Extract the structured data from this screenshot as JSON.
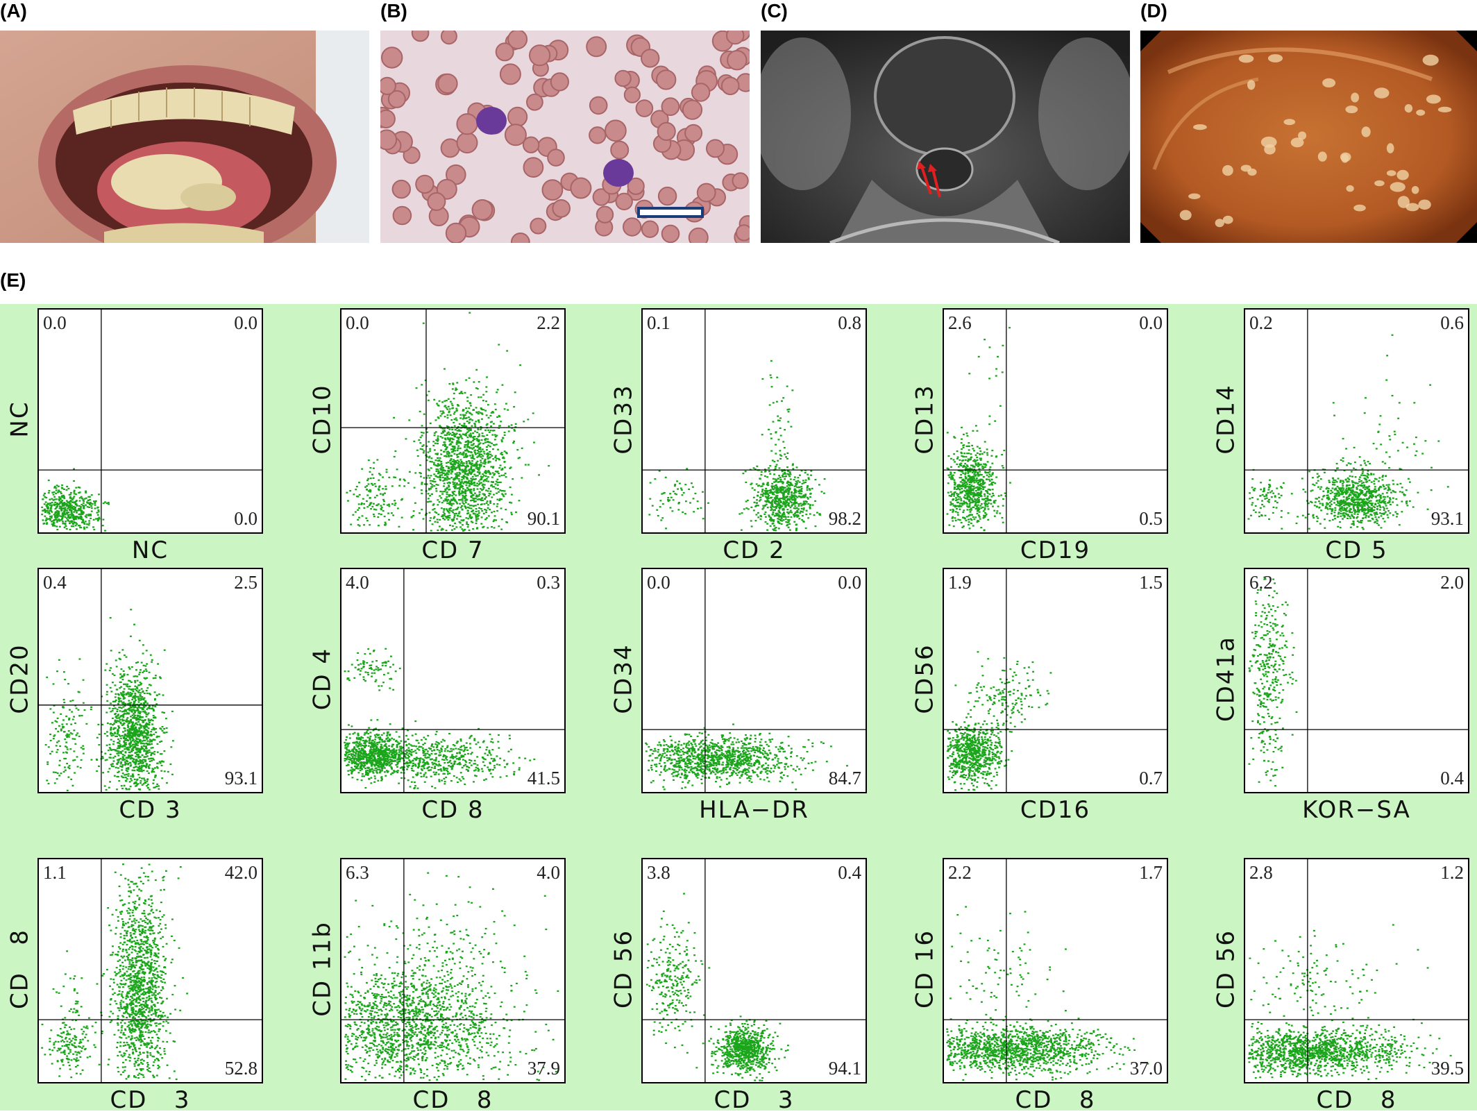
{
  "panel_labels": {
    "a": "(A)",
    "b": "(B)",
    "c": "(C)",
    "d": "(D)",
    "e": "(E)"
  },
  "images": {
    "a": "photo of open mouth with whitish plaques on tongue",
    "b": "peripheral blood smear with two purple-stained lymphocytes and scale bar",
    "c": "axial MRI of lumbar spine with red arrows",
    "d": "endoscopic view of colonic mucosa with multiple whitish nodules"
  },
  "colors": {
    "dot": "#1aa51a",
    "panel_bg": "#ccf5c4",
    "arrow": "#e02020"
  },
  "chart_data": [
    {
      "type": "scatter",
      "xlabel": "NC",
      "ylabel": "NC",
      "quadrants": {
        "ul": "0.0",
        "ur": "0.0",
        "lr": "0.0"
      }
    },
    {
      "type": "scatter",
      "xlabel": "CD 7",
      "ylabel": "CD10",
      "quadrants": {
        "ul": "0.0",
        "ur": "2.2",
        "lr": "90.1"
      }
    },
    {
      "type": "scatter",
      "xlabel": "CD 2",
      "ylabel": "CD33",
      "quadrants": {
        "ul": "0.1",
        "ur": "0.8",
        "lr": "98.2"
      }
    },
    {
      "type": "scatter",
      "xlabel": "CD19",
      "ylabel": "CD13",
      "quadrants": {
        "ul": "2.6",
        "ur": "0.0",
        "lr": "0.5"
      }
    },
    {
      "type": "scatter",
      "xlabel": "CD 5",
      "ylabel": "CD14",
      "quadrants": {
        "ul": "0.2",
        "ur": "0.6",
        "lr": "93.1"
      }
    },
    {
      "type": "scatter",
      "xlabel": "CD 3",
      "ylabel": "CD20",
      "quadrants": {
        "ul": "0.4",
        "ur": "2.5",
        "lr": "93.1"
      }
    },
    {
      "type": "scatter",
      "xlabel": "CD 8",
      "ylabel": "CD 4",
      "quadrants": {
        "ul": "4.0",
        "ur": "0.3",
        "lr": "41.5"
      }
    },
    {
      "type": "scatter",
      "xlabel": "HLA−DR",
      "ylabel": "CD34",
      "quadrants": {
        "ul": "0.0",
        "ur": "0.0",
        "lr": "84.7"
      }
    },
    {
      "type": "scatter",
      "xlabel": "CD16",
      "ylabel": "CD56",
      "quadrants": {
        "ul": "1.9",
        "ur": "1.5",
        "lr": "0.7"
      }
    },
    {
      "type": "scatter",
      "xlabel": "KOR−SA",
      "ylabel": "CD41a",
      "quadrants": {
        "ul": "6.2",
        "ur": "2.0",
        "lr": "0.4"
      }
    },
    {
      "type": "scatter",
      "xlabel": "CD   3",
      "ylabel": "CD   8",
      "quadrants": {
        "ul": "1.1",
        "ur": "42.0",
        "lr": "52.8"
      }
    },
    {
      "type": "scatter",
      "xlabel": "CD   8",
      "ylabel": "CD 11b",
      "quadrants": {
        "ul": "6.3",
        "ur": "4.0",
        "lr": "37.9"
      }
    },
    {
      "type": "scatter",
      "xlabel": "CD   3",
      "ylabel": "CD 56",
      "quadrants": {
        "ul": "3.8",
        "ur": "0.4",
        "lr": "94.1"
      }
    },
    {
      "type": "scatter",
      "xlabel": "CD   8",
      "ylabel": "CD 16",
      "quadrants": {
        "ul": "2.2",
        "ur": "1.7",
        "lr": "37.0"
      }
    },
    {
      "type": "scatter",
      "xlabel": "CD   8",
      "ylabel": "CD 56",
      "quadrants": {
        "ul": "2.8",
        "ur": "1.2",
        "lr": "39.5"
      }
    }
  ]
}
